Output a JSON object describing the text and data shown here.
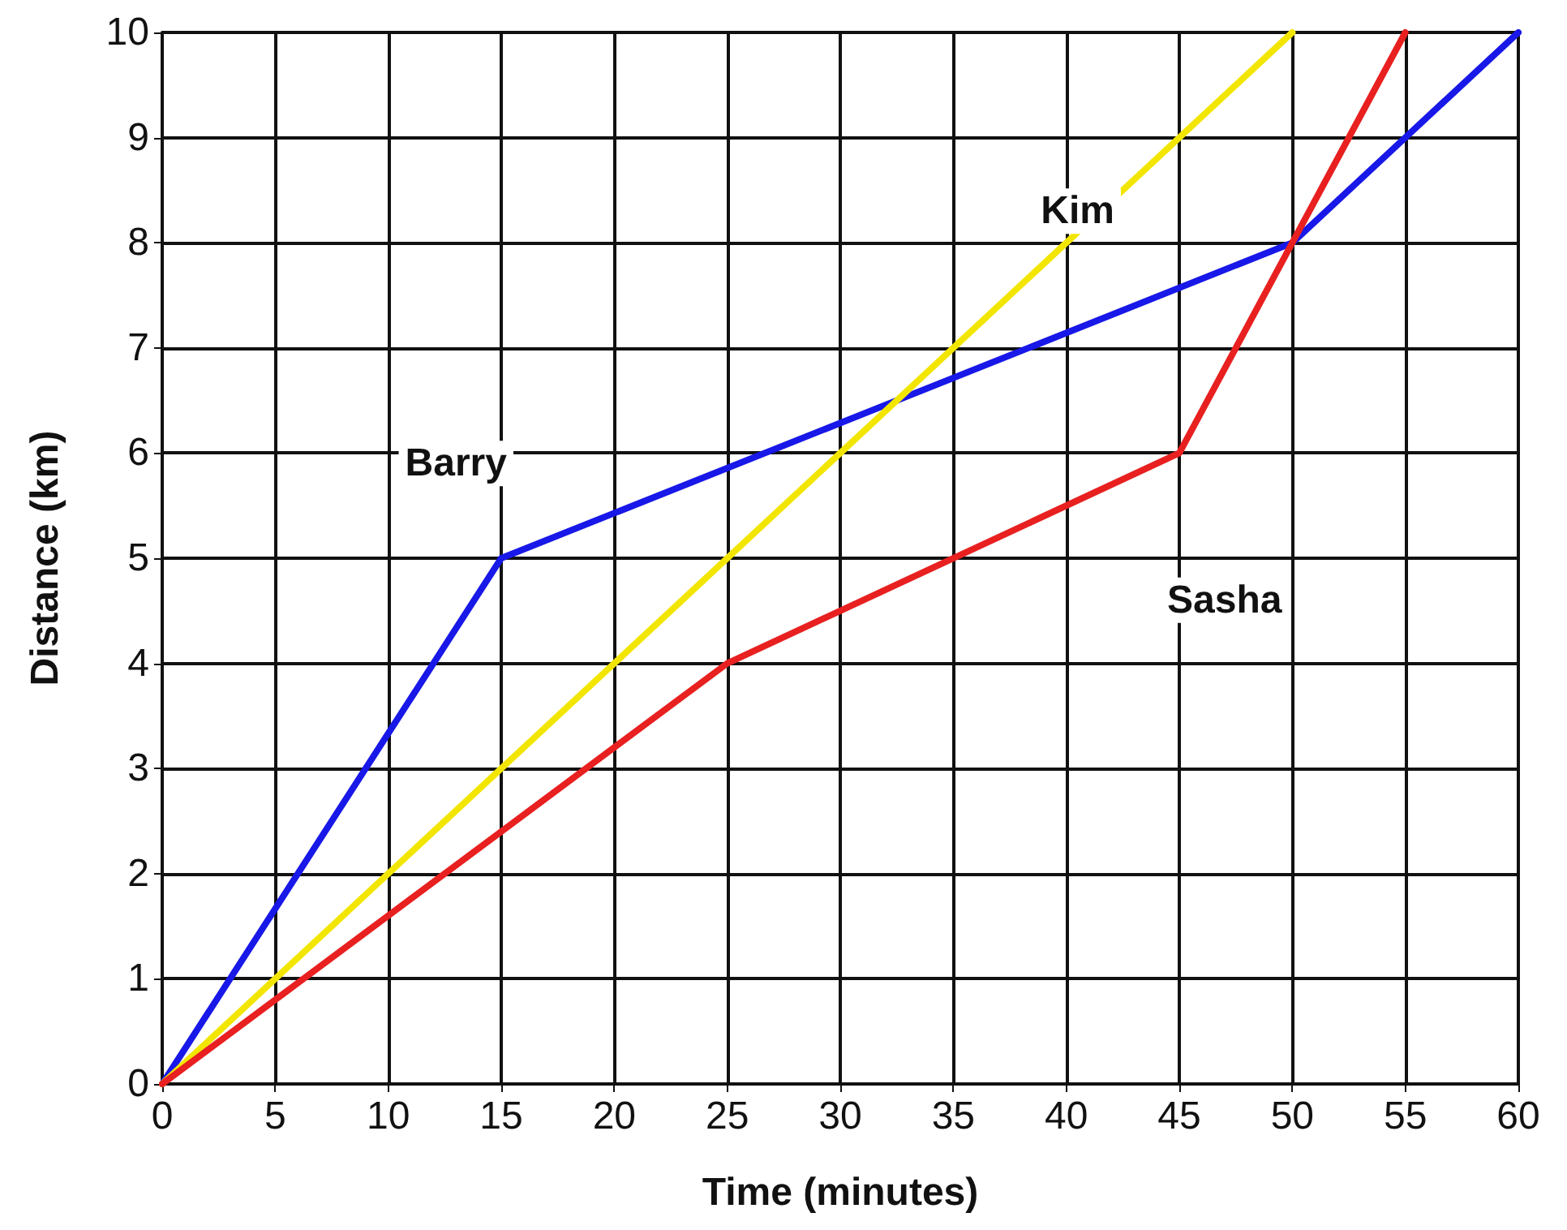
{
  "chart_data": {
    "type": "line",
    "xlabel": "Time (minutes)",
    "ylabel": "Distance (km)",
    "xlim": [
      0,
      60
    ],
    "xticks": [
      0,
      5,
      10,
      15,
      20,
      25,
      30,
      35,
      40,
      45,
      50,
      55,
      60
    ],
    "ylim": [
      0,
      10
    ],
    "yticks": [
      0,
      1,
      2,
      3,
      4,
      5,
      6,
      7,
      8,
      9,
      10
    ],
    "grid": true,
    "legend": false,
    "marker": "none",
    "line_style": "solid",
    "series": [
      {
        "name": "Barry",
        "color": "#1818e8",
        "x": [
          0,
          15,
          50,
          60
        ],
        "values": [
          0,
          5,
          8,
          10
        ]
      },
      {
        "name": "Kim",
        "color": "#f2e600",
        "x": [
          0,
          50
        ],
        "values": [
          0,
          10
        ]
      },
      {
        "name": "Sasha",
        "color": "#e82020",
        "x": [
          0,
          25,
          45,
          50,
          55
        ],
        "values": [
          0,
          4,
          6,
          8,
          10
        ]
      }
    ]
  }
}
